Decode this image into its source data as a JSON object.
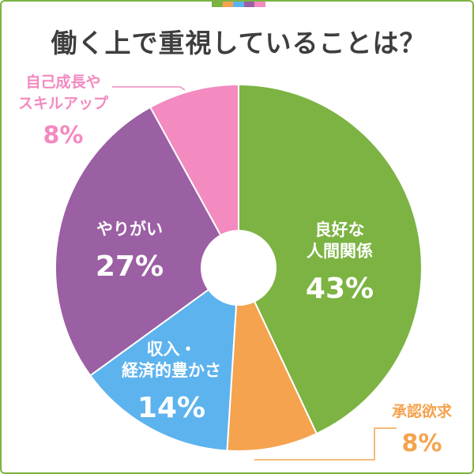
{
  "title": "働く上で重視していることは？",
  "colors": {
    "border": "#7cb342",
    "stripe": [
      "#7cb342",
      "#f5a34e",
      "#5db3ee",
      "#9b5fa3",
      "#f38ac0"
    ]
  },
  "chart_data": {
    "type": "pie",
    "donut_hole": true,
    "slices": [
      {
        "label_lines": [
          "良好な",
          "人間関係"
        ],
        "value": 43,
        "value_text": "43%",
        "color": "#7cb342",
        "label_color": "#ffffff",
        "label_outside": false
      },
      {
        "label_lines": [
          "承認欲求"
        ],
        "value": 8,
        "value_text": "8%",
        "color": "#f5a34e",
        "label_color": "#f5a34e",
        "label_outside": true
      },
      {
        "label_lines": [
          "収入・",
          "経済的豊かさ"
        ],
        "value": 14,
        "value_text": "14%",
        "color": "#5db3ee",
        "label_color": "#ffffff",
        "label_outside": false
      },
      {
        "label_lines": [
          "やりがい"
        ],
        "value": 27,
        "value_text": "27%",
        "color": "#9b5fa3",
        "label_color": "#ffffff",
        "label_outside": false
      },
      {
        "label_lines": [
          "自己成長や",
          "スキルアップ"
        ],
        "value": 8,
        "value_text": "8%",
        "color": "#f38ac0",
        "label_color": "#f38ac0",
        "label_outside": true
      }
    ]
  }
}
